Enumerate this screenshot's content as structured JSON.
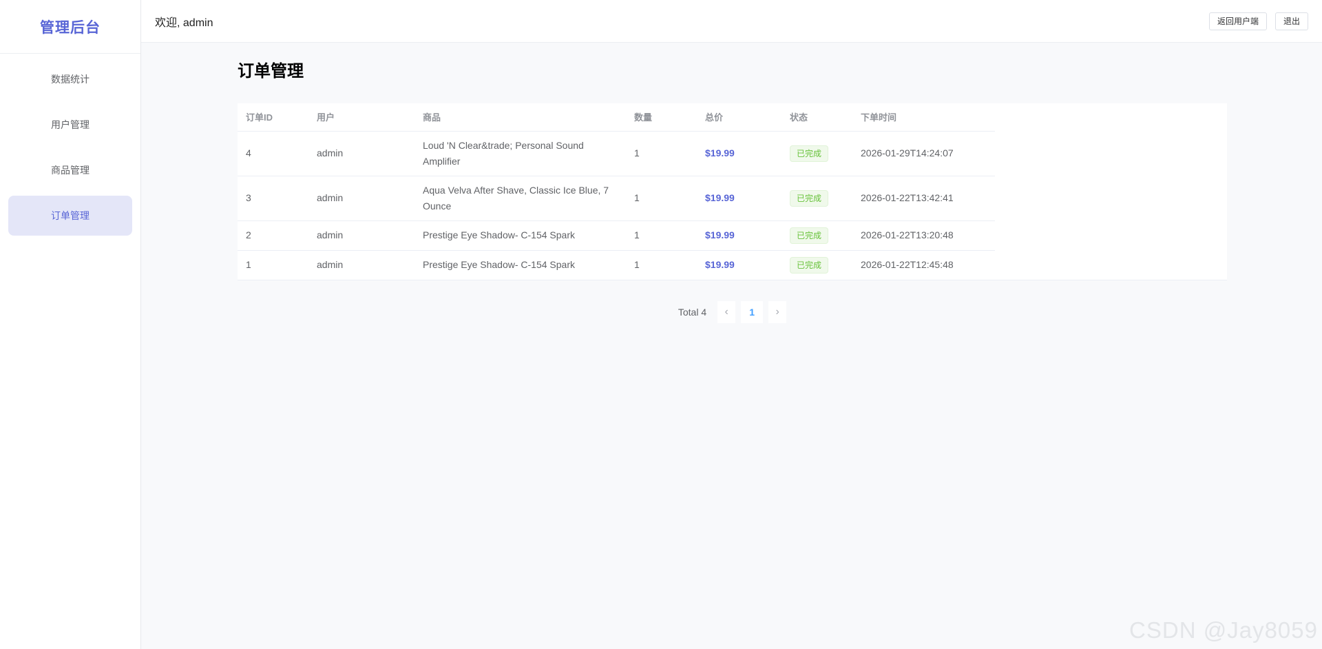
{
  "sidebar": {
    "brand": "管理后台",
    "items": [
      {
        "label": "数据统计"
      },
      {
        "label": "用户管理"
      },
      {
        "label": "商品管理"
      },
      {
        "label": "订单管理",
        "active": true
      }
    ]
  },
  "header": {
    "welcome": "欢迎, admin",
    "back_label": "返回用户端",
    "logout_label": "退出"
  },
  "page": {
    "title": "订单管理"
  },
  "table": {
    "columns": [
      "订单ID",
      "用户",
      "商品",
      "数量",
      "总价",
      "状态",
      "下单时间"
    ],
    "rows": [
      {
        "id": "4",
        "user": "admin",
        "product": "Loud 'N Clear&trade; Personal Sound Amplifier",
        "qty": "1",
        "total": "$19.99",
        "status": "已完成",
        "time": "2026-01-29T14:24:07"
      },
      {
        "id": "3",
        "user": "admin",
        "product": "Aqua Velva After Shave, Classic Ice Blue, 7 Ounce",
        "qty": "1",
        "total": "$19.99",
        "status": "已完成",
        "time": "2026-01-22T13:42:41"
      },
      {
        "id": "2",
        "user": "admin",
        "product": "Prestige Eye Shadow- C-154 Spark",
        "qty": "1",
        "total": "$19.99",
        "status": "已完成",
        "time": "2026-01-22T13:20:48"
      },
      {
        "id": "1",
        "user": "admin",
        "product": "Prestige Eye Shadow- C-154 Spark",
        "qty": "1",
        "total": "$19.99",
        "status": "已完成",
        "time": "2026-01-22T12:45:48"
      }
    ]
  },
  "pagination": {
    "total_label": "Total 4",
    "current_page": "1",
    "prev_icon": "‹",
    "next_icon": "›"
  },
  "watermark": "CSDN @Jay8059",
  "colors": {
    "accent": "#5865d6",
    "status_green": "#67c23a",
    "page_active": "#409eff"
  }
}
